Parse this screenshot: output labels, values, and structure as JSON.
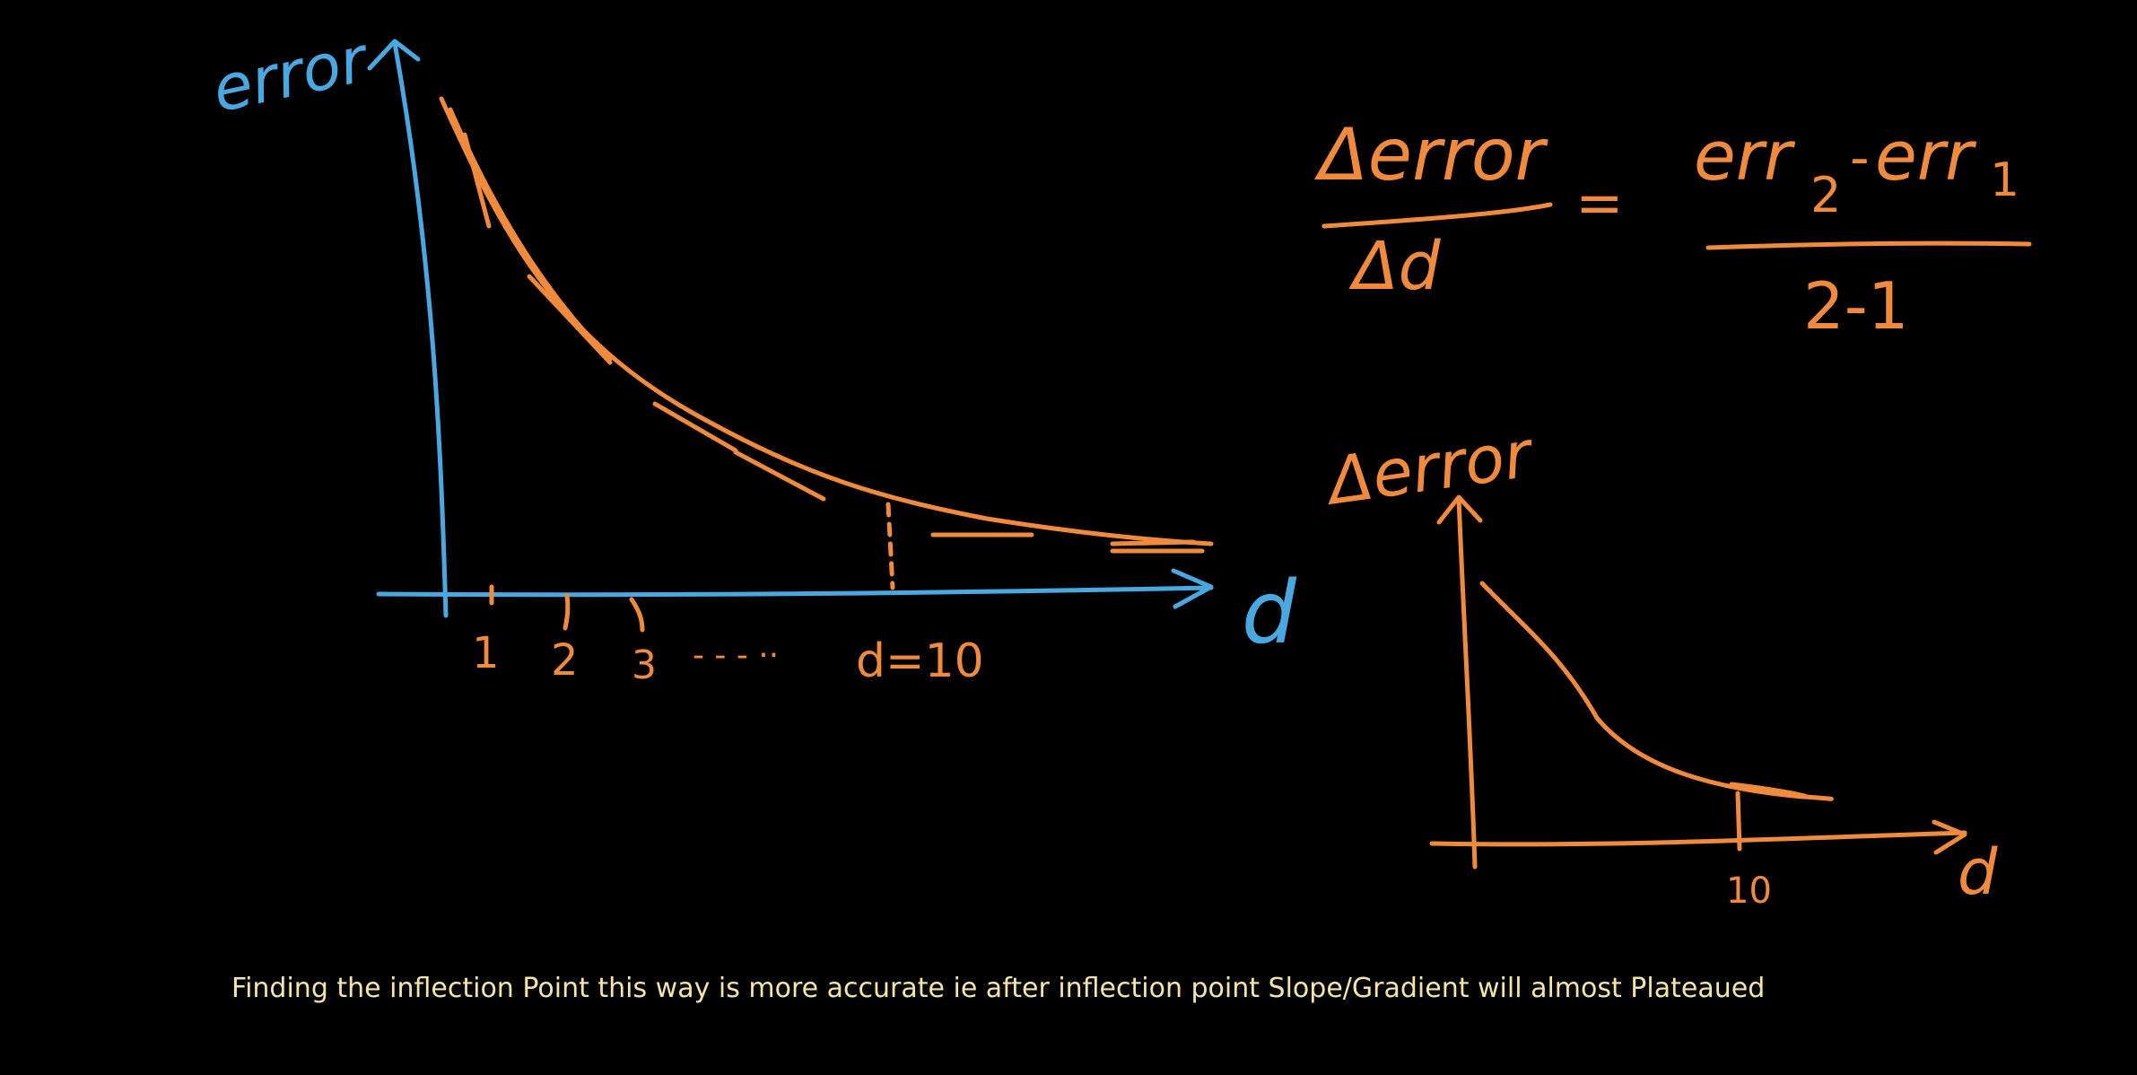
{
  "colors": {
    "background": "#000000",
    "axis_blue": "#4aa8e0",
    "ink_orange": "#f08a3c",
    "caption": "#f5e6a8"
  },
  "left_plot": {
    "y_label": "error",
    "x_label": "d",
    "ticks": [
      "1",
      "2",
      "3"
    ],
    "ellipsis": "- - - ··",
    "marker": "d=10"
  },
  "formula": {
    "lhs_numerator": "Δerror",
    "lhs_denominator": "Δd",
    "equals": "=",
    "rhs_numerator_a": "err",
    "rhs_sub_a": "2",
    "rhs_minus": "-",
    "rhs_numerator_b": "err",
    "rhs_sub_b": "1",
    "rhs_denominator": "2-1"
  },
  "right_plot": {
    "y_label": "Δerror",
    "x_label": "d",
    "marker": "10"
  },
  "caption": "Finding the inflection Point this way is more accurate ie after inflection point Slope/Gradient will almost Plateaued"
}
